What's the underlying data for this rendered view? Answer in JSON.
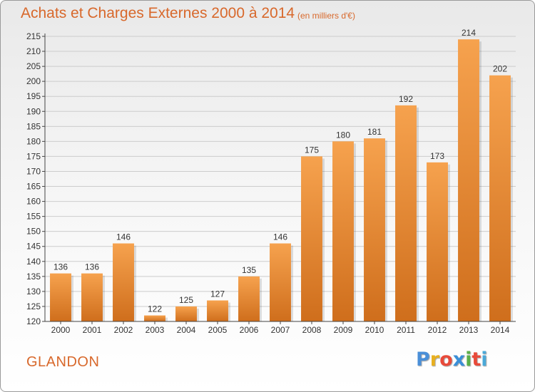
{
  "header": {
    "title": "Achats et Charges Externes 2000 à 2014",
    "subtitle": "(en milliers d'€)"
  },
  "footer": {
    "commune": "GLANDON",
    "brand_letters": [
      "P",
      "r",
      "o",
      "x",
      "i",
      "t",
      "i"
    ],
    "brand_colors": [
      "#4a8fd8",
      "#e8b020",
      "#e84a3a",
      "#3a8fd8",
      "#5ab04a",
      "#e84a3a",
      "#4aa8d8"
    ]
  },
  "colors": {
    "bar_light": "#f6a24e",
    "bar_dark": "#cf6e1c",
    "accent": "#d8682b",
    "axis": "#444444",
    "grid": "#cccccc"
  },
  "chart_data": {
    "type": "bar",
    "title": "Achats et Charges Externes 2000 à 2014",
    "subtitle": "(en milliers d'€)",
    "categories": [
      "2000",
      "2001",
      "2002",
      "2003",
      "2004",
      "2005",
      "2006",
      "2007",
      "2008",
      "2009",
      "2010",
      "2011",
      "2012",
      "2013",
      "2014"
    ],
    "values": [
      136,
      136,
      146,
      122,
      125,
      127,
      135,
      146,
      175,
      180,
      181,
      192,
      173,
      214,
      202
    ],
    "ylim": [
      120,
      215
    ],
    "yticks": [
      120,
      125,
      130,
      135,
      140,
      145,
      150,
      155,
      160,
      165,
      170,
      175,
      180,
      185,
      190,
      195,
      200,
      205,
      210,
      215
    ],
    "grid": true,
    "data_labels": true
  }
}
